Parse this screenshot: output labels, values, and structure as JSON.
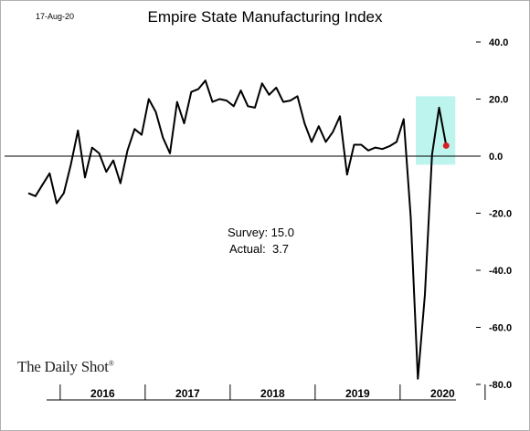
{
  "date": "17-Aug-20",
  "logo": {
    "text": "The Daily Shot",
    "mark": "®"
  },
  "chart_data": {
    "type": "line",
    "title": "Empire State Manufacturing Index",
    "xlabel": "",
    "ylabel": "",
    "ylim": [
      -80,
      40
    ],
    "yticks": [
      40,
      20,
      0,
      -20,
      -40,
      -60,
      -80
    ],
    "ytick_labels": [
      "40.0",
      "20.0",
      "0.0",
      "-20.0",
      "-40.0",
      "-60.0",
      "-80.0"
    ],
    "year_labels": [
      "2016",
      "2017",
      "2018",
      "2019",
      "2020"
    ],
    "x_start": "2015-08",
    "series": [
      {
        "values": [
          -13,
          -14,
          -10,
          -6,
          -16.5,
          -13,
          -3,
          9,
          -7.5,
          3,
          1,
          -5.5,
          -1.5,
          -9.5,
          2,
          9.5,
          7.5,
          20,
          15.5,
          6.5,
          1,
          19,
          11.5,
          22.5,
          23.5,
          26.5,
          19,
          20,
          19.5,
          17.5,
          23,
          17.5,
          17,
          25.5,
          21.5,
          24,
          19,
          19.5,
          21,
          11.5,
          5,
          10.5,
          5,
          8.5,
          14,
          -6.5,
          4,
          4,
          2,
          3,
          2.5,
          3.5,
          5,
          13,
          -21.5,
          -78,
          -48.5,
          0.5,
          17,
          3.7
        ]
      }
    ],
    "last_point_color": "#d62020",
    "highlight": {
      "color": "#a8f0e8",
      "from_index": 56,
      "to_index": 59
    },
    "annotations": {
      "survey": "Survey: 15.0",
      "actual": "Actual:  3.7"
    }
  }
}
